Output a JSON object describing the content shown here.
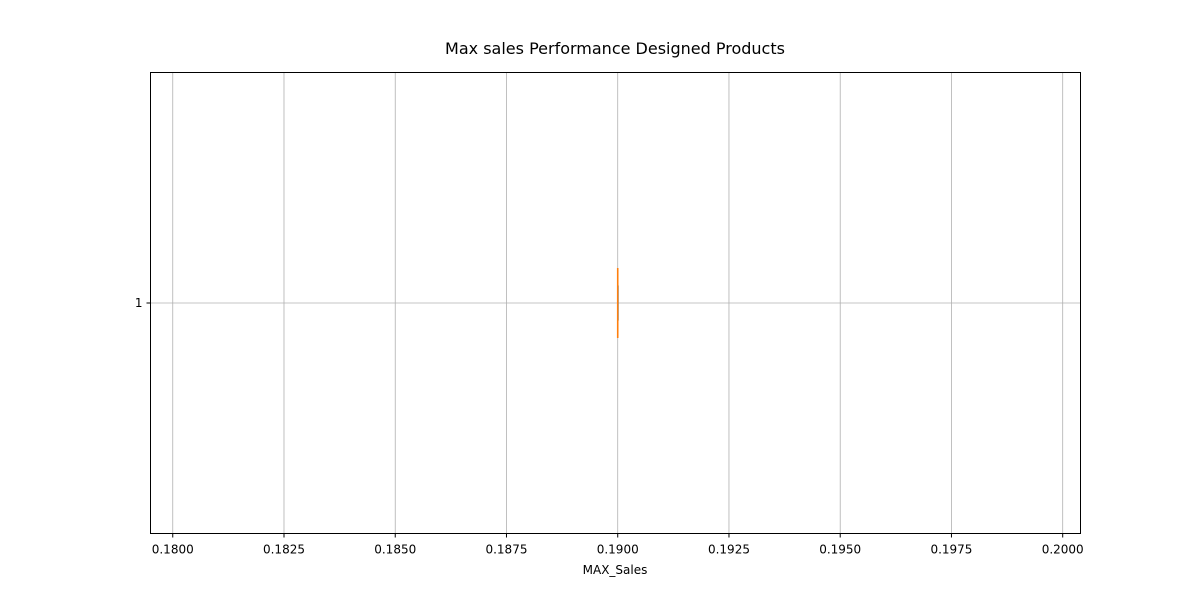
{
  "chart_data": {
    "type": "box",
    "orientation": "horizontal",
    "title": "Max sales Performance Designed Products",
    "xlabel": "MAX_Sales",
    "ylabel": "",
    "xlim": [
      0.1795,
      0.2004
    ],
    "xticks": [
      0.18,
      0.1825,
      0.185,
      0.1875,
      0.19,
      0.1925,
      0.195,
      0.1975,
      0.2
    ],
    "xtick_labels": [
      "0.1800",
      "0.1825",
      "0.1850",
      "0.1875",
      "0.1900",
      "0.1925",
      "0.1950",
      "0.1975",
      "0.2000"
    ],
    "categories": [
      "1"
    ],
    "boxes": [
      {
        "label": "1",
        "min": 0.19,
        "q1": 0.19,
        "median": 0.19,
        "q3": 0.19,
        "max": 0.19
      }
    ],
    "grid": true,
    "colors": {
      "box": "#1f77b4",
      "median": "#ff7f0e",
      "grid": "#b0b0b0",
      "frame": "#000000"
    }
  }
}
